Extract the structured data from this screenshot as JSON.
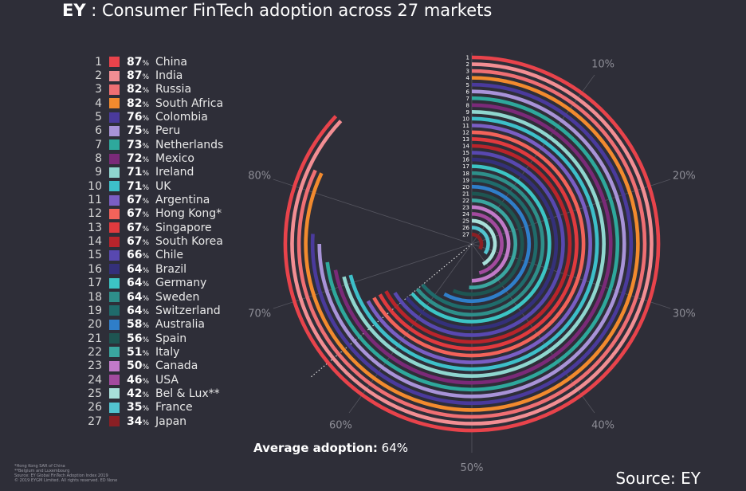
{
  "header": {
    "brand": "EY",
    "title": " : Consumer FinTech adoption across 27 markets"
  },
  "avg_label": "Average adoption:",
  "avg_value": "64%",
  "source": "Source: EY",
  "footnotes": [
    "*Hong Kong SAR of China",
    "**Belgium and Luxembourg",
    "Source: EY Global FinTech Adoption Index 2019",
    "© 2019 EYGM Limited. All rights reserved. ED None"
  ],
  "chart_data": {
    "type": "radial-bar",
    "title": "Consumer FinTech adoption across 27 markets",
    "average": 64,
    "scale_ticks": [
      {
        "value": 10,
        "label": "10%"
      },
      {
        "value": 20,
        "label": "20%"
      },
      {
        "value": 30,
        "label": "30%"
      },
      {
        "value": 40,
        "label": "40%"
      },
      {
        "value": 50,
        "label": "50%"
      },
      {
        "value": 60,
        "label": "60%"
      },
      {
        "value": 70,
        "label": "70%"
      },
      {
        "value": 80,
        "label": "80%"
      }
    ],
    "series": [
      {
        "rank": "1",
        "country": "China",
        "value": 87,
        "color": "#e8434b"
      },
      {
        "rank": "2",
        "country": "India",
        "value": 87,
        "color": "#f28e93"
      },
      {
        "rank": "3",
        "country": "Russia",
        "value": 82,
        "color": "#ef6f73"
      },
      {
        "rank": "4",
        "country": "South Africa",
        "value": 82,
        "color": "#f28a2e"
      },
      {
        "rank": "5",
        "country": "Colombia",
        "value": 76,
        "color": "#4a3a9c"
      },
      {
        "rank": "6",
        "country": "Peru",
        "value": 75,
        "color": "#a893d8"
      },
      {
        "rank": "7",
        "country": "Netherlands",
        "value": 73,
        "color": "#2ea89c"
      },
      {
        "rank": "8",
        "country": "Mexico",
        "value": 72,
        "color": "#7a2a78"
      },
      {
        "rank": "9",
        "country": "Ireland",
        "value": 71,
        "color": "#8fd6cf"
      },
      {
        "rank": "10",
        "country": "UK",
        "value": 71,
        "color": "#3dbfc9"
      },
      {
        "rank": "11",
        "country": "Argentina",
        "value": 67,
        "color": "#7a5ec4"
      },
      {
        "rank": "12",
        "country": "Hong Kong*",
        "value": 67,
        "color": "#f2635a"
      },
      {
        "rank": "13",
        "country": "Singapore",
        "value": 67,
        "color": "#e03a3e"
      },
      {
        "rank": "14",
        "country": "South Korea",
        "value": 67,
        "color": "#b8242b"
      },
      {
        "rank": "15",
        "country": "Chile",
        "value": 66,
        "color": "#5848b0"
      },
      {
        "rank": "16",
        "country": "Brazil",
        "value": 64,
        "color": "#34307a"
      },
      {
        "rank": "17",
        "country": "Germany",
        "value": 64,
        "color": "#3cc4c4"
      },
      {
        "rank": "18",
        "country": "Sweden",
        "value": 64,
        "color": "#2e8f8a"
      },
      {
        "rank": "19",
        "country": "Switzerland",
        "value": 64,
        "color": "#1f6b6b"
      },
      {
        "rank": "20",
        "country": "Australia",
        "value": 58,
        "color": "#2f7ec9"
      },
      {
        "rank": "21",
        "country": "Spain",
        "value": 56,
        "color": "#1e5552"
      },
      {
        "rank": "22",
        "country": "Italy",
        "value": 51,
        "color": "#3aa6a0"
      },
      {
        "rank": "23",
        "country": "Canada",
        "value": 50,
        "color": "#c27ac9"
      },
      {
        "rank": "24",
        "country": "USA",
        "value": 46,
        "color": "#a24a9e"
      },
      {
        "rank": "25",
        "country": "Bel & Lux**",
        "value": 42,
        "color": "#a8e0da"
      },
      {
        "rank": "26",
        "country": "France",
        "value": 35,
        "color": "#52c3cf"
      },
      {
        "rank": "27",
        "country": "Japan",
        "value": 34,
        "color": "#8a1f24"
      }
    ]
  }
}
